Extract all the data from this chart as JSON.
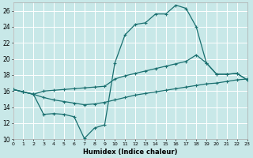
{
  "xlabel": "Humidex (Indice chaleur)",
  "bg_color": "#c8e8e8",
  "grid_color": "#ffffff",
  "line_color": "#1a7070",
  "x_ticks": [
    0,
    1,
    2,
    3,
    4,
    5,
    6,
    7,
    8,
    9,
    10,
    11,
    12,
    13,
    14,
    15,
    16,
    17,
    18,
    19,
    20,
    21,
    22,
    23
  ],
  "ylim": [
    10,
    27
  ],
  "xlim": [
    0,
    23
  ],
  "y_ticks": [
    10,
    12,
    14,
    16,
    18,
    20,
    22,
    24,
    26
  ],
  "line1_x": [
    0,
    1,
    2,
    3,
    4,
    5,
    6,
    7,
    8,
    9,
    10,
    11,
    12,
    13,
    14,
    15,
    16,
    17,
    18,
    19,
    20,
    21,
    22,
    23
  ],
  "line1_y": [
    16.2,
    15.9,
    15.6,
    13.1,
    13.2,
    13.1,
    12.8,
    10.1,
    11.4,
    11.8,
    19.5,
    23.0,
    24.3,
    24.5,
    25.6,
    25.6,
    26.7,
    26.3,
    24.0,
    19.5,
    18.1,
    18.1,
    18.2,
    17.4
  ],
  "line2_x": [
    0,
    1,
    2,
    3,
    4,
    5,
    6,
    7,
    8,
    9,
    10,
    11,
    12,
    13,
    14,
    15,
    16,
    17,
    18,
    19,
    20,
    21,
    22,
    23
  ],
  "line2_y": [
    16.2,
    15.9,
    15.6,
    16.0,
    16.1,
    16.2,
    16.3,
    16.4,
    16.5,
    16.6,
    17.5,
    17.9,
    18.2,
    18.5,
    18.8,
    19.1,
    19.4,
    19.7,
    20.5,
    19.5,
    18.1,
    18.1,
    18.2,
    17.4
  ],
  "line3_x": [
    0,
    1,
    2,
    3,
    4,
    5,
    6,
    7,
    8,
    9,
    10,
    11,
    12,
    13,
    14,
    15,
    16,
    17,
    18,
    19,
    20,
    21,
    22,
    23
  ],
  "line3_y": [
    16.2,
    15.9,
    15.6,
    15.2,
    14.9,
    14.7,
    14.5,
    14.3,
    14.4,
    14.6,
    14.9,
    15.2,
    15.5,
    15.7,
    15.9,
    16.1,
    16.3,
    16.5,
    16.7,
    16.9,
    17.0,
    17.2,
    17.4,
    17.5
  ]
}
